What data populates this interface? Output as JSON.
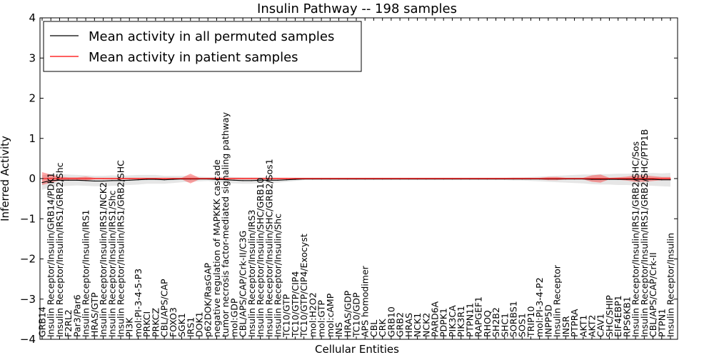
{
  "chart_data": {
    "type": "line",
    "title": "Insulin Pathway -- 198 samples",
    "xlabel": "Cellular Entities",
    "ylabel": "Inferred Activity",
    "ylim": [
      -4,
      4
    ],
    "yticks": [
      -4,
      -3,
      -2,
      -1,
      0,
      1,
      2,
      3,
      4
    ],
    "ytick_labels": [
      "−4",
      "−3",
      "−2",
      "−1",
      "0",
      "1",
      "2",
      "3",
      "4"
    ],
    "grid": false,
    "legend_position": "top-left",
    "categories": [
      "GRB14",
      "Insulin Receptor/Insulin/GRB14/PDK1",
      "Insulin Receptor/Insulin/IRS1/GRB2/Shc",
      "F2RL2",
      "Par3/Par6",
      "Insulin Receptor/Insulin/IRS1",
      "HRAS/GTP",
      "Insulin Receptor/Insulin/IRS1/NCK2",
      "Insulin Receptor/Insulin/IRS1/Shc",
      "Insulin Receptor/Insulin/IRS1/GRB2/SHC",
      "PI3K",
      "mol:PI-3-4-5-P3",
      "PRKCI",
      "PRKCZ",
      "CBL/APS/CAP",
      "FOXO3",
      "SGK1",
      "IRS1",
      "DOK1",
      "p62DOK/RasGAP",
      "negative regulation of MAPKKK cascade",
      "tumor necrosis factor-mediated signaling pathway",
      "mol:GDP",
      "CBL/APS/CAP/Crk-II/C3G",
      "Insulin Receptor/Insulin/IRS3",
      "Insulin Receptor/Insulin/SHC/GRB10",
      "Insulin Receptor/Insulin/SHC/GRB2/Sos1",
      "Insulin Receptor/Insulin/Shc",
      "TC10/GTP",
      "TC10/GTP/CIP4",
      "TC10/GTP/CIP4/Exocyst",
      "mol:H2O2",
      "mol:GTP",
      "mol:cAMP",
      "INS",
      "HRAS/GDP",
      "TC10/GDP",
      "APS homodimer",
      "CBL",
      "CRK",
      "GRB10",
      "GRB2",
      "HRAS",
      "NCK1",
      "NCK2",
      "PARD6A",
      "PDPK1",
      "PIK3CA",
      "PIK3R1",
      "PTPN11",
      "RAPGEF1",
      "RHOQ",
      "SH2B2",
      "SHC1",
      "SORBS1",
      "SOS1",
      "TRIP10",
      "mol:PI-3-4-P2",
      "INPP5D",
      "Insulin Receptor",
      "INSR",
      "PTPRA",
      "AKT1",
      "AKT2",
      "CAV1",
      "SHC/SHIP",
      "EIF4EBP1",
      "RPS6KB1",
      "Insulin Receptor/Insulin/IRS1/GRB2/SHC/Sos",
      "Insulin Receptor/Insulin/IRS1/GRB2/SHC/PTP1B",
      "CBL/APS/CAP/Crk-II",
      "PTPN1",
      "Insulin Receptor/Insulin"
    ],
    "series": [
      {
        "name": "Mean activity in all permuted samples",
        "color": "#000000",
        "values": [
          -0.1,
          -0.05,
          -0.04,
          -0.04,
          -0.04,
          -0.05,
          -0.06,
          -0.06,
          -0.05,
          -0.05,
          -0.04,
          -0.03,
          -0.02,
          -0.02,
          -0.03,
          -0.02,
          -0.01,
          -0.01,
          -0.01,
          -0.01,
          -0.02,
          -0.03,
          -0.04,
          -0.05,
          -0.05,
          -0.04,
          -0.04,
          -0.04,
          -0.03,
          -0.02,
          -0.01,
          -0.01,
          -0.01,
          -0.01,
          -0.01,
          -0.01,
          -0.01,
          -0.01,
          -0.01,
          -0.01,
          -0.01,
          -0.01,
          -0.01,
          -0.01,
          -0.01,
          -0.01,
          -0.01,
          -0.01,
          -0.01,
          -0.01,
          -0.01,
          -0.01,
          -0.01,
          -0.01,
          -0.01,
          -0.01,
          -0.01,
          -0.01,
          -0.01,
          -0.01,
          -0.01,
          -0.01,
          -0.01,
          -0.02,
          -0.02,
          -0.02,
          -0.02,
          -0.02,
          -0.02,
          -0.02,
          -0.02,
          -0.03,
          -0.03
        ],
        "band": [
          0.18,
          0.16,
          0.15,
          0.14,
          0.13,
          0.13,
          0.13,
          0.13,
          0.13,
          0.12,
          0.12,
          0.12,
          0.11,
          0.11,
          0.1,
          0.09,
          0.08,
          0.07,
          0.06,
          0.05,
          0.06,
          0.08,
          0.08,
          0.08,
          0.08,
          0.07,
          0.07,
          0.06,
          0.05,
          0.04,
          0.03,
          0.03,
          0.03,
          0.03,
          0.03,
          0.03,
          0.03,
          0.03,
          0.03,
          0.03,
          0.03,
          0.03,
          0.03,
          0.03,
          0.03,
          0.03,
          0.03,
          0.03,
          0.03,
          0.03,
          0.03,
          0.03,
          0.03,
          0.03,
          0.04,
          0.04,
          0.05,
          0.06,
          0.07,
          0.08,
          0.09,
          0.1,
          0.11,
          0.12,
          0.13,
          0.13,
          0.14,
          0.14,
          0.15,
          0.15,
          0.16,
          0.16,
          0.17
        ]
      },
      {
        "name": "Mean activity in patient samples",
        "color": "#ff0000",
        "values": [
          0.0,
          0.0,
          0.0,
          0.0,
          0.0,
          0.0,
          0.0,
          0.0,
          0.0,
          0.0,
          0.0,
          0.0,
          0.0,
          0.0,
          0.0,
          0.0,
          0.0,
          0.0,
          0.0,
          0.0,
          0.0,
          0.0,
          0.0,
          0.0,
          0.0,
          0.0,
          0.0,
          0.0,
          0.0,
          0.0,
          0.0,
          0.0,
          0.0,
          0.0,
          0.0,
          0.0,
          0.0,
          0.0,
          0.0,
          0.0,
          0.0,
          0.0,
          0.0,
          0.0,
          0.0,
          0.0,
          0.0,
          0.0,
          0.0,
          0.0,
          0.0,
          0.0,
          0.0,
          0.0,
          0.0,
          0.0,
          0.0,
          0.0,
          0.0,
          0.0,
          0.0,
          0.0,
          0.0,
          0.0,
          0.0,
          0.0,
          0.0,
          0.0,
          0.0,
          0.0,
          0.0,
          0.0,
          0.0
        ],
        "band": [
          0.16,
          0.1,
          0.05,
          0.03,
          0.03,
          0.05,
          0.02,
          0.02,
          0.02,
          0.02,
          0.02,
          0.02,
          0.02,
          0.02,
          0.02,
          0.02,
          0.02,
          0.12,
          0.02,
          0.02,
          0.02,
          0.02,
          0.02,
          0.02,
          0.02,
          0.02,
          0.02,
          0.02,
          0.02,
          0.02,
          0.02,
          0.02,
          0.02,
          0.02,
          0.02,
          0.02,
          0.02,
          0.02,
          0.02,
          0.02,
          0.02,
          0.02,
          0.02,
          0.02,
          0.02,
          0.02,
          0.02,
          0.02,
          0.02,
          0.02,
          0.02,
          0.02,
          0.02,
          0.02,
          0.02,
          0.02,
          0.02,
          0.02,
          0.04,
          0.04,
          0.02,
          0.02,
          0.02,
          0.08,
          0.1,
          0.02,
          0.03,
          0.05,
          0.08,
          0.08,
          0.06,
          0.04,
          0.04
        ]
      }
    ]
  }
}
